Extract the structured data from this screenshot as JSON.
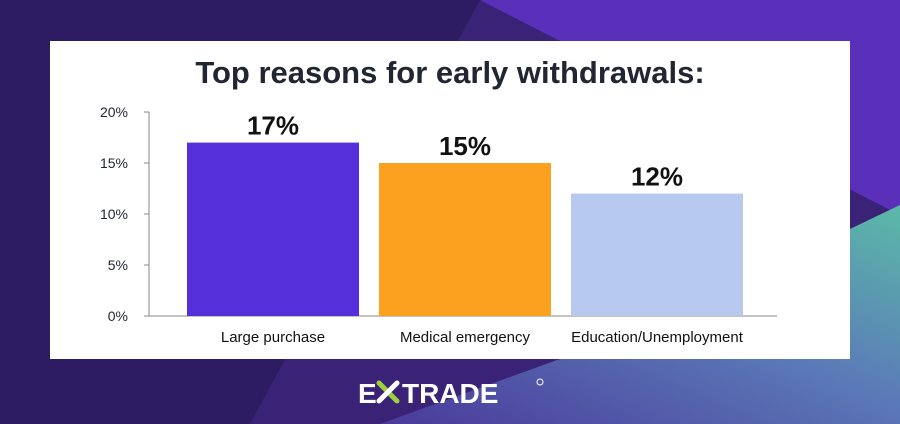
{
  "background": {
    "base_color": "#3a2376",
    "accent_purple": "#5b2fbf",
    "accent_teal": "#5bb9a8"
  },
  "chart_data": {
    "type": "bar",
    "title": "Top reasons for early withdrawals:",
    "categories": [
      "Large purchase",
      "Medical emergency",
      "Education/Unemployment"
    ],
    "values": [
      17,
      15,
      12
    ],
    "data_labels": [
      "17%",
      "15%",
      "12%"
    ],
    "colors": [
      "#5530da",
      "#fba11f",
      "#b8c9ef"
    ],
    "yticks": [
      "0%",
      "5%",
      "10%",
      "15%",
      "20%"
    ],
    "ytick_values": [
      0,
      5,
      10,
      15,
      20
    ],
    "ylim": [
      0,
      20
    ],
    "grid": false,
    "legend": "none"
  },
  "brand": {
    "logo_text": "E*TRADE",
    "logo_color": "#ffffff",
    "star_color": "#9bd13c"
  }
}
